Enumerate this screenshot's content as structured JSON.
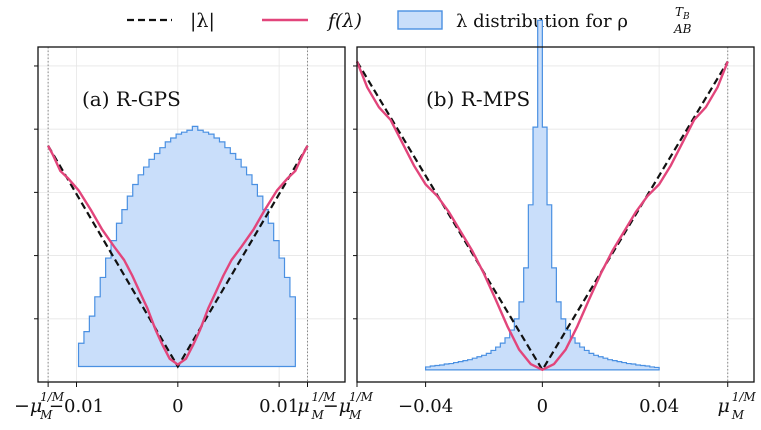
{
  "legend": [
    {
      "key": "abs",
      "label": "|λ|",
      "color": "#111111",
      "style": "dashed"
    },
    {
      "key": "f",
      "label": "f(λ)",
      "color": "#e2457b",
      "style": "solid"
    },
    {
      "key": "hist",
      "label": "λ distribution for ρ",
      "sup": "T",
      "sup_sub": "B",
      "sub": "AB",
      "color": "#4a90e2",
      "fill": "#c9defa",
      "style": "patch"
    }
  ],
  "colors": {
    "abs": "#111111",
    "f": "#e2457b",
    "hist_edge": "#4a90e2",
    "hist_fill": "#c9defa",
    "grid": "#e6e6e6",
    "marker": "#8a8a8a"
  },
  "chart_data": [
    {
      "panel": "a",
      "title": "(a) R-GPS",
      "type": "line",
      "xlim": [
        -0.0138,
        0.0165
      ],
      "ylim": [
        -0.0008,
        0.0165
      ],
      "mu": 0.0128,
      "tick_labels": [
        {
          "x": -0.0128,
          "main": "−μ",
          "sub": "M",
          "sup": "1/M"
        },
        {
          "x": -0.01,
          "main": "−0.01"
        },
        {
          "x": 0,
          "main": "0"
        },
        {
          "x": 0.01,
          "main": "0.01"
        },
        {
          "x": 0.0128,
          "main": "μ",
          "sub": "M",
          "sup": "1/M"
        }
      ],
      "f_x": [
        -0.0128,
        -0.0123,
        -0.0116,
        -0.0108,
        -0.0098,
        -0.0086,
        -0.0075,
        -0.0063,
        -0.0053,
        -0.0045,
        -0.0038,
        -0.003,
        -0.0022,
        -0.0015,
        -0.0008,
        0,
        0.0008,
        0.0015,
        0.0022,
        0.003,
        0.0038,
        0.0045,
        0.0053,
        0.0063,
        0.0075,
        0.0086,
        0.0098,
        0.0108,
        0.0116,
        0.0123,
        0.0128
      ],
      "f_y": [
        0.0114,
        0.0109,
        0.0101,
        0.0097,
        0.0091,
        0.0081,
        0.0071,
        0.0062,
        0.0055,
        0.0047,
        0.0039,
        0.003,
        0.0019,
        0.0011,
        0.0004,
        0.0001,
        0.0004,
        0.0011,
        0.0019,
        0.003,
        0.0039,
        0.0047,
        0.0055,
        0.0062,
        0.0071,
        0.0081,
        0.0091,
        0.0097,
        0.0101,
        0.0109,
        0.0114
      ],
      "hist": {
        "x0": -0.0098,
        "x1": 0.0116,
        "heights": [
          0.0012,
          0.0018,
          0.0026,
          0.0036,
          0.0046,
          0.0056,
          0.0065,
          0.0074,
          0.0081,
          0.0088,
          0.0094,
          0.0099,
          0.0103,
          0.0107,
          0.011,
          0.0113,
          0.0116,
          0.0118,
          0.012,
          0.0121,
          0.0122,
          0.0124,
          0.0122,
          0.0121,
          0.012,
          0.0118,
          0.0116,
          0.0113,
          0.011,
          0.0107,
          0.0103,
          0.0099,
          0.0094,
          0.0088,
          0.0081,
          0.0074,
          0.0065,
          0.0056,
          0.0046,
          0.0036
        ]
      }
    },
    {
      "panel": "b",
      "title": "(b) R-MPS",
      "type": "line",
      "xlim": [
        -0.0635,
        0.0725
      ],
      "ylim": [
        -0.0025,
        0.0665
      ],
      "mu": 0.0635,
      "tick_labels": [
        {
          "x": -0.0635,
          "main": "−μ",
          "sub": "M",
          "sup": "1/M"
        },
        {
          "x": -0.04,
          "main": "−0.04"
        },
        {
          "x": 0,
          "main": "0"
        },
        {
          "x": 0.04,
          "main": "0.04"
        },
        {
          "x": 0.0635,
          "main": "μ",
          "sub": "M",
          "sup": "1/M"
        }
      ],
      "f_x": [
        -0.0635,
        -0.06,
        -0.056,
        -0.052,
        -0.048,
        -0.044,
        -0.04,
        -0.036,
        -0.032,
        -0.028,
        -0.024,
        -0.02,
        -0.016,
        -0.012,
        -0.008,
        -0.004,
        0,
        0.004,
        0.008,
        0.012,
        0.016,
        0.02,
        0.024,
        0.028,
        0.032,
        0.036,
        0.04,
        0.044,
        0.048,
        0.052,
        0.056,
        0.06,
        0.0635
      ],
      "f_y": [
        0.0635,
        0.0582,
        0.0541,
        0.0515,
        0.0468,
        0.0421,
        0.0382,
        0.0358,
        0.0325,
        0.0285,
        0.0245,
        0.0198,
        0.0145,
        0.009,
        0.0042,
        0.0012,
        0.0,
        0.0012,
        0.0042,
        0.009,
        0.0145,
        0.0198,
        0.0245,
        0.0285,
        0.0325,
        0.0358,
        0.0382,
        0.0421,
        0.0468,
        0.0515,
        0.0541,
        0.0582,
        0.0635
      ],
      "hist": {
        "x0": -0.04,
        "x1": 0.04,
        "heights": [
          0.0006,
          0.0008,
          0.0009,
          0.001,
          0.0012,
          0.0013,
          0.0015,
          0.0017,
          0.0019,
          0.0021,
          0.0024,
          0.0027,
          0.003,
          0.0034,
          0.004,
          0.0047,
          0.0055,
          0.0066,
          0.0082,
          0.0105,
          0.014,
          0.021,
          0.034,
          0.05,
          0.072,
          0.05,
          0.034,
          0.021,
          0.014,
          0.0105,
          0.0082,
          0.0066,
          0.0055,
          0.0047,
          0.004,
          0.0034,
          0.003,
          0.0027,
          0.0024,
          0.0021,
          0.0019,
          0.0017,
          0.0015,
          0.0013,
          0.0012,
          0.001,
          0.0009,
          0.0008,
          0.0006,
          0.0005
        ]
      }
    }
  ]
}
